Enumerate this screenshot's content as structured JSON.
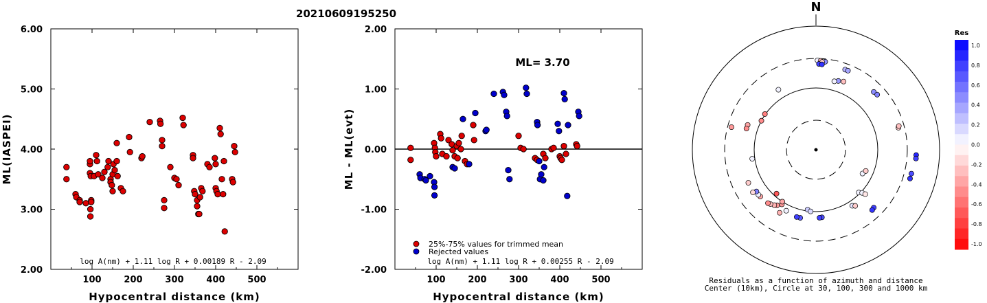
{
  "event_id": "20210609195250",
  "chart_data": [
    {
      "type": "scatter",
      "title": "",
      "xlabel": "Hypocentral distance (km)",
      "ylabel": "ML(IASPEI)",
      "xlim": [
        0,
        600
      ],
      "ylim": [
        2.0,
        6.0
      ],
      "xticks": [
        100,
        200,
        300,
        400,
        500
      ],
      "yticks": [
        "2.00",
        "3.00",
        "4.00",
        "5.00",
        "6.00"
      ],
      "formula": "log A(nm) + 1.11 log R + 0.00189 R - 2.09",
      "point_color": "#dd0000",
      "points": [
        [
          38,
          3.7
        ],
        [
          38,
          3.5
        ],
        [
          60,
          3.25
        ],
        [
          62,
          3.2
        ],
        [
          70,
          3.15
        ],
        [
          70,
          3.12
        ],
        [
          85,
          3.1
        ],
        [
          95,
          3.75
        ],
        [
          95,
          3.8
        ],
        [
          95,
          3.6
        ],
        [
          97,
          3.55
        ],
        [
          98,
          3.15
        ],
        [
          98,
          3.12
        ],
        [
          96,
          3.0
        ],
        [
          96,
          2.88
        ],
        [
          105,
          3.55
        ],
        [
          110,
          3.9
        ],
        [
          112,
          3.8
        ],
        [
          115,
          3.58
        ],
        [
          125,
          3.52
        ],
        [
          130,
          3.62
        ],
        [
          138,
          3.7
        ],
        [
          140,
          3.8
        ],
        [
          145,
          3.5
        ],
        [
          145,
          3.45
        ],
        [
          148,
          3.4
        ],
        [
          150,
          3.58
        ],
        [
          150,
          3.3
        ],
        [
          152,
          3.75
        ],
        [
          155,
          3.65
        ],
        [
          160,
          4.1
        ],
        [
          160,
          3.8
        ],
        [
          162,
          3.55
        ],
        [
          170,
          3.35
        ],
        [
          175,
          3.3
        ],
        [
          190,
          4.2
        ],
        [
          192,
          3.95
        ],
        [
          220,
          3.85
        ],
        [
          222,
          3.88
        ],
        [
          240,
          4.45
        ],
        [
          265,
          4.47
        ],
        [
          266,
          4.42
        ],
        [
          270,
          4.15
        ],
        [
          270,
          4.05
        ],
        [
          275,
          3.15
        ],
        [
          275,
          3.02
        ],
        [
          290,
          3.7
        ],
        [
          300,
          3.52
        ],
        [
          305,
          3.5
        ],
        [
          310,
          3.4
        ],
        [
          320,
          4.52
        ],
        [
          322,
          4.4
        ],
        [
          345,
          3.9
        ],
        [
          345,
          3.85
        ],
        [
          348,
          3.3
        ],
        [
          350,
          3.25
        ],
        [
          355,
          3.15
        ],
        [
          355,
          3.05
        ],
        [
          358,
          2.92
        ],
        [
          360,
          2.92
        ],
        [
          362,
          3.2
        ],
        [
          365,
          3.35
        ],
        [
          368,
          3.3
        ],
        [
          380,
          3.75
        ],
        [
          385,
          3.7
        ],
        [
          398,
          3.85
        ],
        [
          400,
          3.75
        ],
        [
          400,
          3.35
        ],
        [
          402,
          3.3
        ],
        [
          405,
          3.25
        ],
        [
          410,
          4.35
        ],
        [
          412,
          4.25
        ],
        [
          415,
          3.5
        ],
        [
          418,
          3.25
        ],
        [
          420,
          3.8
        ],
        [
          422,
          2.63
        ],
        [
          440,
          3.5
        ],
        [
          442,
          3.45
        ],
        [
          445,
          4.05
        ],
        [
          447,
          3.95
        ]
      ]
    },
    {
      "type": "scatter",
      "title": "",
      "xlabel": "Hypocentral distance (km)",
      "ylabel": "ML - ML(evt)",
      "xlim": [
        0,
        600
      ],
      "ylim": [
        -2.0,
        2.0
      ],
      "xticks": [
        100,
        200,
        300,
        400,
        500
      ],
      "yticks": [
        "-2.00",
        "-1.00",
        "0.00",
        "1.00",
        "2.00"
      ],
      "ml_label": "ML= 3.70",
      "formula": "log A(nm) + 1.11 log R + 0.00255 R - 2.09",
      "legend": [
        {
          "label": "25%-75% values for trimmed mean",
          "color": "#dd0000"
        },
        {
          "label": "Rejected values",
          "color": "#0000cc"
        }
      ],
      "series": [
        {
          "name": "25%-75% values for trimmed mean",
          "color": "#dd0000",
          "points": [
            [
              38,
              0.02
            ],
            [
              38,
              -0.18
            ],
            [
              95,
              0.1
            ],
            [
              97,
              0.02
            ],
            [
              98,
              -0.05
            ],
            [
              100,
              -0.12
            ],
            [
              110,
              0.25
            ],
            [
              112,
              0.18
            ],
            [
              115,
              -0.08
            ],
            [
              125,
              -0.12
            ],
            [
              130,
              0.15
            ],
            [
              138,
              0.08
            ],
            [
              140,
              -0.02
            ],
            [
              145,
              -0.12
            ],
            [
              150,
              0.05
            ],
            [
              152,
              -0.15
            ],
            [
              155,
              0.1
            ],
            [
              160,
              0.0
            ],
            [
              162,
              0.22
            ],
            [
              170,
              -0.2
            ],
            [
              175,
              -0.25
            ],
            [
              190,
              0.4
            ],
            [
              192,
              0.15
            ],
            [
              300,
              0.22
            ],
            [
              305,
              0.02
            ],
            [
              312,
              0.0
            ],
            [
              340,
              -0.15
            ],
            [
              345,
              -0.18
            ],
            [
              360,
              -0.08
            ],
            [
              365,
              -0.15
            ],
            [
              380,
              0.0
            ],
            [
              385,
              0.02
            ],
            [
              400,
              -0.12
            ],
            [
              402,
              -0.15
            ],
            [
              405,
              -0.18
            ],
            [
              410,
              0.05
            ],
            [
              415,
              -0.08
            ],
            [
              440,
              0.08
            ],
            [
              442,
              0.05
            ]
          ]
        },
        {
          "name": "Rejected values",
          "color": "#0000cc",
          "points": [
            [
              60,
              -0.42
            ],
            [
              62,
              -0.48
            ],
            [
              72,
              -0.5
            ],
            [
              75,
              -0.52
            ],
            [
              85,
              -0.45
            ],
            [
              95,
              -0.55
            ],
            [
              96,
              -0.63
            ],
            [
              96,
              -0.77
            ],
            [
              140,
              -0.3
            ],
            [
              145,
              -0.32
            ],
            [
              165,
              0.5
            ],
            [
              180,
              -0.25
            ],
            [
              195,
              0.6
            ],
            [
              220,
              0.3
            ],
            [
              222,
              0.32
            ],
            [
              240,
              0.92
            ],
            [
              262,
              0.95
            ],
            [
              265,
              0.9
            ],
            [
              270,
              0.62
            ],
            [
              272,
              0.55
            ],
            [
              275,
              -0.35
            ],
            [
              278,
              -0.5
            ],
            [
              318,
              1.02
            ],
            [
              320,
              0.92
            ],
            [
              345,
              0.45
            ],
            [
              346,
              0.4
            ],
            [
              350,
              -0.2
            ],
            [
              352,
              -0.5
            ],
            [
              355,
              -0.42
            ],
            [
              360,
              -0.52
            ],
            [
              362,
              -0.3
            ],
            [
              395,
              0.42
            ],
            [
              398,
              0.3
            ],
            [
              410,
              0.93
            ],
            [
              412,
              0.83
            ],
            [
              418,
              -0.78
            ],
            [
              420,
              0.4
            ],
            [
              445,
              0.62
            ],
            [
              447,
              0.55
            ]
          ]
        }
      ]
    },
    {
      "type": "scatter",
      "title": "N",
      "caption_line1": "Residuals as a function of azimuth and distance",
      "caption_line2": "Center (10km), Circle at 30, 100, 300 and 1000 km",
      "rings": [
        {
          "label": "30 km",
          "style": "dashed"
        },
        {
          "label": "100 km",
          "style": "solid"
        },
        {
          "label": "300 km",
          "style": "dashed"
        },
        {
          "label": "1000 km",
          "style": "solid"
        }
      ],
      "colorbar_title": "Res",
      "colorbar_ticks": [
        "1.0",
        "0.8",
        "0.6",
        "0.4",
        "0.2",
        "0.0",
        "-0.2",
        "-0.4",
        "-0.6",
        "-0.8",
        "-1.0"
      ],
      "colorbar_range": [
        -1.0,
        1.0
      ],
      "stations": [
        {
          "azimuth_deg": 1,
          "distance_km": 280,
          "residual": 0.05
        },
        {
          "azimuth_deg": 3,
          "distance_km": 275,
          "residual": -0.3
        },
        {
          "azimuth_deg": 6,
          "distance_km": 270,
          "residual": 0.45
        },
        {
          "azimuth_deg": 4,
          "distance_km": 265,
          "residual": -0.2
        },
        {
          "azimuth_deg": 2,
          "distance_km": 245,
          "residual": 0.75
        },
        {
          "azimuth_deg": 4,
          "distance_km": 242,
          "residual": 0.8
        },
        {
          "azimuth_deg": 20,
          "distance_km": 240,
          "residual": 0.3
        },
        {
          "azimuth_deg": 22,
          "distance_km": 240,
          "residual": 0.35
        },
        {
          "azimuth_deg": 45,
          "distance_km": 210,
          "residual": 0.45
        },
        {
          "azimuth_deg": 48,
          "distance_km": 215,
          "residual": 0.5
        },
        {
          "azimuth_deg": 22,
          "distance_km": 155,
          "residual": -0.25
        },
        {
          "azimuth_deg": 18,
          "distance_km": 148,
          "residual": 0.4
        },
        {
          "azimuth_deg": 15,
          "distance_km": 140,
          "residual": 0.05
        },
        {
          "azimuth_deg": 328,
          "distance_km": 140,
          "residual": 0.05
        },
        {
          "azimuth_deg": 298,
          "distance_km": 100,
          "residual": -0.45
        },
        {
          "azimuth_deg": 305,
          "distance_km": 102,
          "residual": -0.5
        },
        {
          "azimuth_deg": 290,
          "distance_km": 150,
          "residual": -0.35
        },
        {
          "azimuth_deg": 287,
          "distance_km": 150,
          "residual": -0.45
        },
        {
          "azimuth_deg": 285,
          "distance_km": 260,
          "residual": -0.4
        },
        {
          "azimuth_deg": 262,
          "distance_km": 110,
          "residual": 0.05
        },
        {
          "azimuth_deg": 117,
          "distance_km": 70,
          "residual": 0.05
        },
        {
          "azimuth_deg": 113,
          "distance_km": 75,
          "residual": -0.2
        },
        {
          "azimuth_deg": 75,
          "distance_km": 240,
          "residual": -0.2
        },
        {
          "azimuth_deg": 74,
          "distance_km": 248,
          "residual": -0.25
        },
        {
          "azimuth_deg": 93,
          "distance_km": 420,
          "residual": 0.85
        },
        {
          "azimuth_deg": 95,
          "distance_km": 420,
          "residual": 0.75
        },
        {
          "azimuth_deg": 104,
          "distance_km": 390,
          "residual": 0.7
        },
        {
          "azimuth_deg": 107,
          "distance_km": 390,
          "residual": 0.8
        },
        {
          "azimuth_deg": 222,
          "distance_km": 90,
          "residual": -0.65
        },
        {
          "azimuth_deg": 212,
          "distance_km": 110,
          "residual": -0.4
        },
        {
          "azimuth_deg": 213,
          "distance_km": 100,
          "residual": -0.35
        },
        {
          "azimuth_deg": 135,
          "distance_km": 95,
          "residual": 0.05
        },
        {
          "azimuth_deg": 133,
          "distance_km": 105,
          "residual": 0.05
        },
        {
          "azimuth_deg": 132,
          "distance_km": 118,
          "residual": -0.1
        },
        {
          "azimuth_deg": 147,
          "distance_km": 120,
          "residual": 0.1
        },
        {
          "azimuth_deg": 145,
          "distance_km": 128,
          "residual": -0.2
        },
        {
          "azimuth_deg": 175,
          "distance_km": 125,
          "residual": 0.7
        },
        {
          "azimuth_deg": 177,
          "distance_km": 126,
          "residual": 0.75
        },
        {
          "azimuth_deg": 135,
          "distance_km": 210,
          "residual": 0.75
        },
        {
          "azimuth_deg": 137,
          "distance_km": 215,
          "residual": 0.8
        },
        {
          "azimuth_deg": 188,
          "distance_km": 95,
          "residual": 0.2
        },
        {
          "azimuth_deg": 185,
          "distance_km": 100,
          "residual": 0.15
        },
        {
          "azimuth_deg": 193,
          "distance_km": 135,
          "residual": 0.65
        },
        {
          "azimuth_deg": 196,
          "distance_km": 135,
          "residual": 0.75
        },
        {
          "azimuth_deg": 230,
          "distance_km": 150,
          "residual": -0.35
        },
        {
          "azimuth_deg": 232,
          "distance_km": 152,
          "residual": 0.05
        },
        {
          "azimuth_deg": 215,
          "distance_km": 125,
          "residual": -0.4
        },
        {
          "azimuth_deg": 217,
          "distance_km": 132,
          "residual": -0.3
        },
        {
          "azimuth_deg": 220,
          "distance_km": 140,
          "residual": -0.25
        },
        {
          "azimuth_deg": 222,
          "distance_km": 145,
          "residual": -0.45
        },
        {
          "azimuth_deg": 206,
          "distance_km": 125,
          "residual": 0.05
        },
        {
          "azimuth_deg": 210,
          "distance_km": 150,
          "residual": -0.3
        },
        {
          "azimuth_deg": 244,
          "distance_km": 165,
          "residual": -0.2
        },
        {
          "azimuth_deg": 235,
          "distance_km": 150,
          "residual": 0.5
        },
        {
          "azimuth_deg": 236,
          "distance_km": 170,
          "residual": -0.15
        }
      ]
    }
  ]
}
